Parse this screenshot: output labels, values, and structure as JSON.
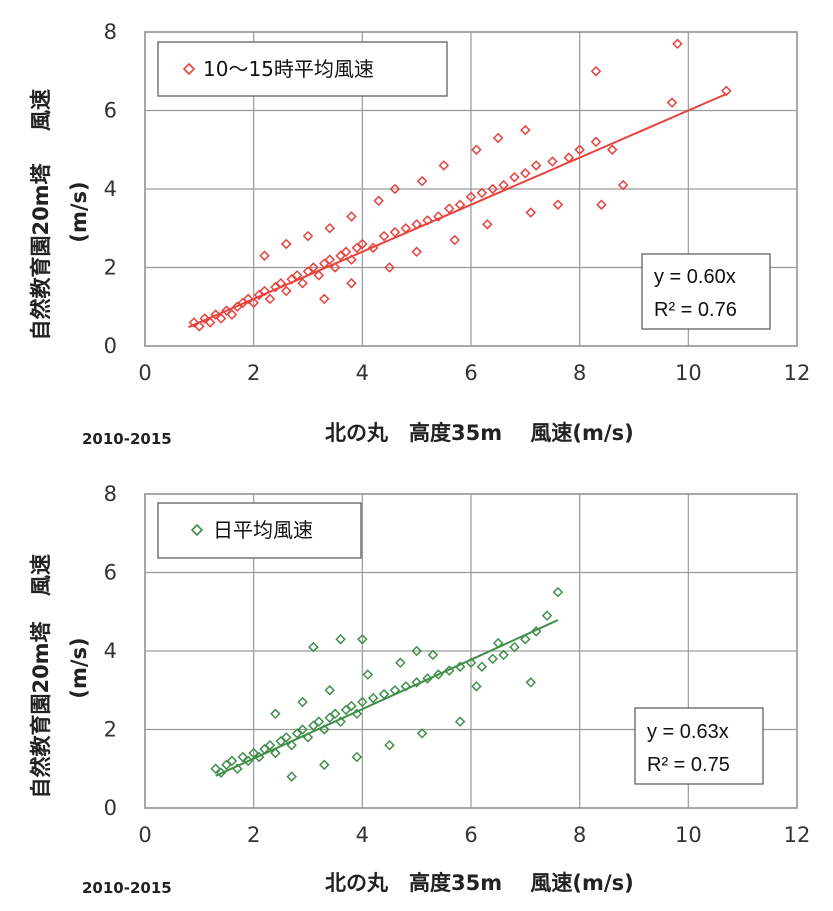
{
  "chart_data": [
    {
      "type": "scatter",
      "series": [
        {
          "name": "10～15時平均風速",
          "color": "#e8413c",
          "marker": "diamond-open",
          "points": [
            [
              0.9,
              0.6
            ],
            [
              1.0,
              0.5
            ],
            [
              1.1,
              0.7
            ],
            [
              1.2,
              0.6
            ],
            [
              1.3,
              0.8
            ],
            [
              1.4,
              0.7
            ],
            [
              1.5,
              0.9
            ],
            [
              1.6,
              0.8
            ],
            [
              1.7,
              1.0
            ],
            [
              1.8,
              1.1
            ],
            [
              1.9,
              1.2
            ],
            [
              2.0,
              1.1
            ],
            [
              2.1,
              1.3
            ],
            [
              2.2,
              1.4
            ],
            [
              2.3,
              1.2
            ],
            [
              2.4,
              1.5
            ],
            [
              2.5,
              1.6
            ],
            [
              2.6,
              1.4
            ],
            [
              2.7,
              1.7
            ],
            [
              2.8,
              1.8
            ],
            [
              2.9,
              1.6
            ],
            [
              3.0,
              1.9
            ],
            [
              3.1,
              2.0
            ],
            [
              3.2,
              1.8
            ],
            [
              3.3,
              2.1
            ],
            [
              3.4,
              2.2
            ],
            [
              3.5,
              2.0
            ],
            [
              3.6,
              2.3
            ],
            [
              3.7,
              2.4
            ],
            [
              3.8,
              2.2
            ],
            [
              3.9,
              2.5
            ],
            [
              4.0,
              2.6
            ],
            [
              4.2,
              2.5
            ],
            [
              4.4,
              2.8
            ],
            [
              4.6,
              2.9
            ],
            [
              4.8,
              3.0
            ],
            [
              5.0,
              3.1
            ],
            [
              5.2,
              3.2
            ],
            [
              5.4,
              3.3
            ],
            [
              5.6,
              3.5
            ],
            [
              5.8,
              3.6
            ],
            [
              6.0,
              3.8
            ],
            [
              6.2,
              3.9
            ],
            [
              6.4,
              4.0
            ],
            [
              6.6,
              4.1
            ],
            [
              6.8,
              4.3
            ],
            [
              7.0,
              4.4
            ],
            [
              7.2,
              4.6
            ],
            [
              7.5,
              4.7
            ],
            [
              7.8,
              4.8
            ],
            [
              8.0,
              5.0
            ],
            [
              8.3,
              5.2
            ],
            [
              8.6,
              5.0
            ],
            [
              8.8,
              4.1
            ],
            [
              8.4,
              3.6
            ],
            [
              9.7,
              6.2
            ],
            [
              8.3,
              7.0
            ],
            [
              9.8,
              7.7
            ],
            [
              10.7,
              6.5
            ],
            [
              2.2,
              2.3
            ],
            [
              2.6,
              2.6
            ],
            [
              3.0,
              2.8
            ],
            [
              3.4,
              3.0
            ],
            [
              3.8,
              3.3
            ],
            [
              4.3,
              3.7
            ],
            [
              4.6,
              4.0
            ],
            [
              5.1,
              4.2
            ],
            [
              5.5,
              4.6
            ],
            [
              6.1,
              5.0
            ],
            [
              6.5,
              5.3
            ],
            [
              7.0,
              5.5
            ],
            [
              3.3,
              1.2
            ],
            [
              3.8,
              1.6
            ],
            [
              4.5,
              2.0
            ],
            [
              5.0,
              2.4
            ],
            [
              5.7,
              2.7
            ],
            [
              6.3,
              3.1
            ],
            [
              7.1,
              3.4
            ],
            [
              7.6,
              3.6
            ]
          ]
        }
      ],
      "trendline": {
        "label": "y = 0.60x",
        "r2_label": "R² = 0.76",
        "slope": 0.6,
        "x_range": [
          0.8,
          10.7
        ]
      },
      "xticks": [
        "0",
        "2",
        "4",
        "6",
        "8",
        "10",
        "12"
      ],
      "yticks": [
        "0",
        "2",
        "4",
        "6",
        "8"
      ],
      "xlim": [
        0,
        12
      ],
      "ylim": [
        0,
        8
      ],
      "xlabel": "北の丸　高度35m　 風速(m/s)",
      "ylabel_lines": [
        "風速",
        "自然教育園20m塔",
        "(m/s)"
      ],
      "period_label": "2010-2015",
      "legend_placement": "top-left",
      "grid": true
    },
    {
      "type": "scatter",
      "series": [
        {
          "name": "日平均風速",
          "color": "#3f8f4a",
          "marker": "diamond-open",
          "points": [
            [
              1.3,
              1.0
            ],
            [
              1.4,
              0.9
            ],
            [
              1.5,
              1.1
            ],
            [
              1.6,
              1.2
            ],
            [
              1.7,
              1.0
            ],
            [
              1.8,
              1.3
            ],
            [
              1.9,
              1.2
            ],
            [
              2.0,
              1.4
            ],
            [
              2.1,
              1.3
            ],
            [
              2.2,
              1.5
            ],
            [
              2.3,
              1.6
            ],
            [
              2.4,
              1.4
            ],
            [
              2.5,
              1.7
            ],
            [
              2.6,
              1.8
            ],
            [
              2.7,
              1.6
            ],
            [
              2.8,
              1.9
            ],
            [
              2.9,
              2.0
            ],
            [
              3.0,
              1.8
            ],
            [
              3.1,
              2.1
            ],
            [
              3.2,
              2.2
            ],
            [
              3.3,
              2.0
            ],
            [
              3.4,
              2.3
            ],
            [
              3.5,
              2.4
            ],
            [
              3.6,
              2.2
            ],
            [
              3.7,
              2.5
            ],
            [
              3.8,
              2.6
            ],
            [
              3.9,
              2.4
            ],
            [
              4.0,
              2.7
            ],
            [
              4.2,
              2.8
            ],
            [
              4.4,
              2.9
            ],
            [
              4.6,
              3.0
            ],
            [
              4.8,
              3.1
            ],
            [
              5.0,
              3.2
            ],
            [
              5.2,
              3.3
            ],
            [
              5.4,
              3.4
            ],
            [
              5.6,
              3.5
            ],
            [
              5.8,
              3.6
            ],
            [
              6.0,
              3.7
            ],
            [
              6.2,
              3.6
            ],
            [
              6.4,
              3.8
            ],
            [
              6.6,
              3.9
            ],
            [
              6.8,
              4.1
            ],
            [
              7.0,
              4.3
            ],
            [
              7.2,
              4.5
            ],
            [
              7.4,
              4.9
            ],
            [
              7.6,
              5.5
            ],
            [
              3.6,
              4.3
            ],
            [
              3.1,
              4.1
            ],
            [
              4.0,
              4.3
            ],
            [
              5.0,
              4.0
            ],
            [
              6.5,
              4.2
            ],
            [
              2.7,
              0.8
            ],
            [
              3.3,
              1.1
            ],
            [
              3.9,
              1.3
            ],
            [
              4.5,
              1.6
            ],
            [
              5.1,
              1.9
            ],
            [
              5.8,
              2.2
            ],
            [
              2.4,
              2.4
            ],
            [
              2.9,
              2.7
            ],
            [
              3.4,
              3.0
            ],
            [
              4.1,
              3.4
            ],
            [
              4.7,
              3.7
            ],
            [
              5.3,
              3.9
            ],
            [
              6.1,
              3.1
            ],
            [
              7.1,
              3.2
            ]
          ]
        }
      ],
      "trendline": {
        "label": "y = 0.63x",
        "r2_label": "R² = 0.75",
        "slope": 0.63,
        "x_range": [
          1.3,
          7.6
        ]
      },
      "xticks": [
        "0",
        "2",
        "4",
        "6",
        "8",
        "10",
        "12"
      ],
      "yticks": [
        "0",
        "2",
        "4",
        "6",
        "8"
      ],
      "xlim": [
        0,
        12
      ],
      "ylim": [
        0,
        8
      ],
      "xlabel": "北の丸　高度35m　 風速(m/s)",
      "ylabel_lines": [
        "風速",
        "自然教育園20m塔",
        "(m/s)"
      ],
      "period_label": "2010-2015",
      "legend_placement": "top-left",
      "grid": true
    }
  ]
}
